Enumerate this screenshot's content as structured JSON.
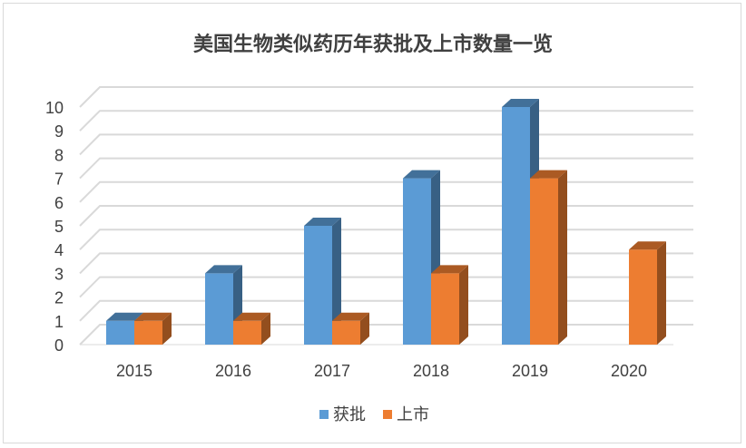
{
  "chart_data": {
    "type": "bar",
    "title": "美国生物类似药历年获批及上市数量一览",
    "categories": [
      "2015",
      "2016",
      "2017",
      "2018",
      "2019",
      "2020"
    ],
    "series": [
      {
        "name": "获批",
        "values": [
          1,
          3,
          5,
          7,
          10,
          null
        ],
        "color": "#5B9BD5"
      },
      {
        "name": "上市",
        "values": [
          1,
          1,
          1,
          3,
          7,
          4
        ],
        "color": "#ED7D31"
      }
    ],
    "y_ticks": [
      "0",
      "1",
      "2",
      "3",
      "4",
      "5",
      "6",
      "7",
      "8",
      "9",
      "10"
    ],
    "ylim": [
      0,
      10
    ],
    "grid": true,
    "legend_position": "bottom",
    "style": "3d-clustered-column"
  }
}
